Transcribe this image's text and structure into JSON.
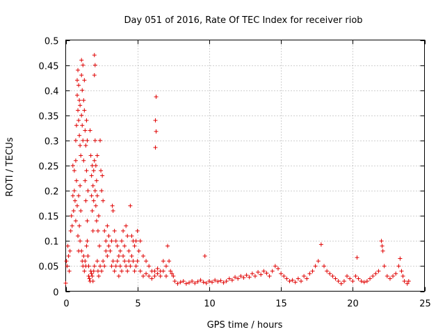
{
  "chart_data": {
    "type": "scatter",
    "title": "Day 051 of 2016, Rate Of TEC Index for receiver riob",
    "xlabel": "GPS time / hours",
    "ylabel": "ROTI / TECUs",
    "xlim": [
      0,
      25
    ],
    "ylim": [
      0,
      0.5
    ],
    "x_ticks": [
      0,
      5,
      10,
      15,
      20,
      25
    ],
    "x_tick_labels": [
      "0",
      "5",
      "10",
      "15",
      "20",
      "25"
    ],
    "y_ticks": [
      0,
      0.05,
      0.1,
      0.15,
      0.2,
      0.25,
      0.3,
      0.35,
      0.4,
      0.45,
      0.5
    ],
    "y_tick_labels": [
      "0",
      "0.05",
      "0.1",
      "0.15",
      "0.2",
      "0.25",
      "0.3",
      "0.35",
      "0.4",
      "0.45",
      "0.5"
    ],
    "grid": true,
    "marker": "+",
    "series_color": "#e00000",
    "series": [
      {
        "name": "ROTI",
        "points": [
          [
            0.0,
            0.016
          ],
          [
            0.05,
            0.06
          ],
          [
            0.1,
            0.05
          ],
          [
            0.15,
            0.09
          ],
          [
            0.2,
            0.07
          ],
          [
            0.25,
            0.04
          ],
          [
            0.3,
            0.08
          ],
          [
            0.35,
            0.12
          ],
          [
            0.4,
            0.15
          ],
          [
            0.45,
            0.13
          ],
          [
            0.5,
            0.19
          ],
          [
            0.5,
            0.25
          ],
          [
            0.55,
            0.16
          ],
          [
            0.6,
            0.2
          ],
          [
            0.6,
            0.24
          ],
          [
            0.65,
            0.18
          ],
          [
            0.7,
            0.26
          ],
          [
            0.7,
            0.14
          ],
          [
            0.75,
            0.22
          ],
          [
            0.8,
            0.17
          ],
          [
            0.85,
            0.11
          ],
          [
            0.9,
            0.08
          ],
          [
            0.9,
            0.19
          ],
          [
            0.95,
            0.13
          ],
          [
            1.0,
            0.1
          ],
          [
            1.0,
            0.21
          ],
          [
            1.05,
            0.16
          ],
          [
            0.7,
            0.3
          ],
          [
            0.75,
            0.33
          ],
          [
            0.8,
            0.39
          ],
          [
            0.8,
            0.42
          ],
          [
            0.85,
            0.44
          ],
          [
            0.85,
            0.36
          ],
          [
            0.9,
            0.34
          ],
          [
            0.9,
            0.41
          ],
          [
            0.95,
            0.38
          ],
          [
            0.95,
            0.31
          ],
          [
            1.0,
            0.37
          ],
          [
            1.0,
            0.29
          ],
          [
            1.05,
            0.27
          ],
          [
            1.1,
            0.43
          ],
          [
            1.1,
            0.46
          ],
          [
            1.1,
            0.35
          ],
          [
            1.15,
            0.4
          ],
          [
            1.15,
            0.33
          ],
          [
            1.2,
            0.45
          ],
          [
            1.2,
            0.3
          ],
          [
            1.25,
            0.38
          ],
          [
            1.25,
            0.26
          ],
          [
            1.3,
            0.36
          ],
          [
            1.3,
            0.42
          ],
          [
            1.35,
            0.32
          ],
          [
            1.35,
            0.22
          ],
          [
            1.4,
            0.29
          ],
          [
            1.4,
            0.18
          ],
          [
            1.45,
            0.34
          ],
          [
            1.45,
            0.24
          ],
          [
            1.5,
            0.3
          ],
          [
            1.5,
            0.14
          ],
          [
            1.55,
            0.2
          ],
          [
            1.1,
            0.08
          ],
          [
            1.15,
            0.06
          ],
          [
            1.2,
            0.05
          ],
          [
            1.25,
            0.07
          ],
          [
            1.3,
            0.04
          ],
          [
            1.35,
            0.06
          ],
          [
            1.4,
            0.05
          ],
          [
            1.45,
            0.09
          ],
          [
            1.5,
            0.1
          ],
          [
            1.55,
            0.07
          ],
          [
            1.6,
            0.05
          ],
          [
            1.6,
            0.03
          ],
          [
            1.65,
            0.025
          ],
          [
            1.7,
            0.02
          ],
          [
            1.75,
            0.04
          ],
          [
            1.8,
            0.035
          ],
          [
            1.85,
            0.03
          ],
          [
            1.9,
            0.02
          ],
          [
            1.95,
            0.04
          ],
          [
            2.0,
            0.05
          ],
          [
            1.7,
            0.32
          ],
          [
            1.75,
            0.27
          ],
          [
            1.8,
            0.23
          ],
          [
            1.8,
            0.19
          ],
          [
            1.85,
            0.25
          ],
          [
            1.85,
            0.16
          ],
          [
            1.9,
            0.21
          ],
          [
            1.9,
            0.12
          ],
          [
            1.95,
            0.18
          ],
          [
            1.95,
            0.24
          ],
          [
            2.0,
            0.43
          ],
          [
            2.0,
            0.47
          ],
          [
            2.0,
            0.26
          ],
          [
            2.05,
            0.45
          ],
          [
            2.05,
            0.3
          ],
          [
            2.05,
            0.2
          ],
          [
            2.1,
            0.25
          ],
          [
            2.1,
            0.17
          ],
          [
            2.15,
            0.22
          ],
          [
            2.15,
            0.14
          ],
          [
            2.2,
            0.19
          ],
          [
            2.2,
            0.27
          ],
          [
            2.25,
            0.12
          ],
          [
            2.3,
            0.15
          ],
          [
            2.35,
            0.09
          ],
          [
            2.4,
            0.3
          ],
          [
            2.45,
            0.24
          ],
          [
            2.5,
            0.2
          ],
          [
            2.55,
            0.23
          ],
          [
            2.6,
            0.18
          ],
          [
            2.2,
            0.06
          ],
          [
            2.25,
            0.04
          ],
          [
            2.3,
            0.03
          ],
          [
            2.4,
            0.05
          ],
          [
            2.5,
            0.04
          ],
          [
            2.6,
            0.06
          ],
          [
            2.7,
            0.05
          ],
          [
            2.8,
            0.08
          ],
          [
            2.9,
            0.07
          ],
          [
            3.0,
            0.09
          ],
          [
            2.7,
            0.12
          ],
          [
            2.8,
            0.1
          ],
          [
            2.9,
            0.13
          ],
          [
            3.0,
            0.11
          ],
          [
            3.1,
            0.08
          ],
          [
            3.2,
            0.1
          ],
          [
            3.25,
            0.17
          ],
          [
            3.3,
            0.16
          ],
          [
            3.4,
            0.12
          ],
          [
            3.5,
            0.1
          ],
          [
            3.2,
            0.05
          ],
          [
            3.3,
            0.06
          ],
          [
            3.4,
            0.04
          ],
          [
            3.5,
            0.05
          ],
          [
            3.6,
            0.06
          ],
          [
            3.7,
            0.03
          ],
          [
            3.8,
            0.05
          ],
          [
            3.9,
            0.04
          ],
          [
            4.0,
            0.07
          ],
          [
            4.1,
            0.06
          ],
          [
            3.6,
            0.09
          ],
          [
            3.7,
            0.07
          ],
          [
            3.8,
            0.08
          ],
          [
            3.9,
            0.1
          ],
          [
            4.0,
            0.12
          ],
          [
            4.1,
            0.09
          ],
          [
            4.2,
            0.13
          ],
          [
            4.3,
            0.11
          ],
          [
            4.4,
            0.08
          ],
          [
            4.5,
            0.17
          ],
          [
            4.2,
            0.05
          ],
          [
            4.3,
            0.04
          ],
          [
            4.4,
            0.06
          ],
          [
            4.5,
            0.05
          ],
          [
            4.6,
            0.07
          ],
          [
            4.7,
            0.06
          ],
          [
            4.8,
            0.04
          ],
          [
            4.9,
            0.05
          ],
          [
            5.0,
            0.06
          ],
          [
            5.1,
            0.08
          ],
          [
            4.6,
            0.11
          ],
          [
            4.7,
            0.1
          ],
          [
            4.8,
            0.09
          ],
          [
            4.9,
            0.1
          ],
          [
            5.0,
            0.12
          ],
          [
            5.2,
            0.1
          ],
          [
            5.4,
            0.07
          ],
          [
            5.6,
            0.06
          ],
          [
            5.8,
            0.05
          ],
          [
            6.0,
            0.04
          ],
          [
            5.2,
            0.04
          ],
          [
            5.4,
            0.03
          ],
          [
            5.6,
            0.035
          ],
          [
            5.8,
            0.03
          ],
          [
            6.0,
            0.025
          ],
          [
            6.2,
            0.03
          ],
          [
            6.4,
            0.035
          ],
          [
            6.6,
            0.04
          ],
          [
            6.8,
            0.06
          ],
          [
            7.0,
            0.05
          ],
          [
            6.2,
            0.04
          ],
          [
            6.4,
            0.045
          ],
          [
            6.6,
            0.03
          ],
          [
            6.8,
            0.04
          ],
          [
            7.0,
            0.03
          ],
          [
            7.1,
            0.09
          ],
          [
            7.2,
            0.06
          ],
          [
            7.3,
            0.04
          ],
          [
            7.4,
            0.035
          ],
          [
            7.5,
            0.03
          ],
          [
            6.3,
            0.387
          ],
          [
            6.25,
            0.34
          ],
          [
            6.3,
            0.318
          ],
          [
            6.25,
            0.286
          ],
          [
            7.6,
            0.02
          ],
          [
            7.8,
            0.015
          ],
          [
            8.0,
            0.018
          ],
          [
            8.2,
            0.02
          ],
          [
            8.4,
            0.015
          ],
          [
            8.6,
            0.017
          ],
          [
            8.8,
            0.02
          ],
          [
            9.0,
            0.016
          ],
          [
            9.2,
            0.019
          ],
          [
            9.4,
            0.022
          ],
          [
            9.6,
            0.018
          ],
          [
            9.7,
            0.07
          ],
          [
            9.8,
            0.016
          ],
          [
            10.0,
            0.02
          ],
          [
            10.2,
            0.018
          ],
          [
            10.4,
            0.022
          ],
          [
            10.6,
            0.019
          ],
          [
            10.8,
            0.021
          ],
          [
            11.0,
            0.017
          ],
          [
            11.2,
            0.02
          ],
          [
            11.4,
            0.025
          ],
          [
            11.6,
            0.022
          ],
          [
            11.8,
            0.028
          ],
          [
            12.0,
            0.025
          ],
          [
            12.2,
            0.03
          ],
          [
            12.4,
            0.027
          ],
          [
            12.6,
            0.032
          ],
          [
            12.8,
            0.028
          ],
          [
            13.0,
            0.035
          ],
          [
            13.2,
            0.03
          ],
          [
            13.4,
            0.038
          ],
          [
            13.6,
            0.033
          ],
          [
            13.8,
            0.04
          ],
          [
            14.0,
            0.036
          ],
          [
            14.2,
            0.03
          ],
          [
            14.4,
            0.04
          ],
          [
            14.6,
            0.05
          ],
          [
            14.8,
            0.045
          ],
          [
            15.0,
            0.035
          ],
          [
            15.2,
            0.03
          ],
          [
            15.4,
            0.025
          ],
          [
            15.6,
            0.02
          ],
          [
            15.8,
            0.022
          ],
          [
            16.0,
            0.018
          ],
          [
            16.2,
            0.025
          ],
          [
            16.4,
            0.02
          ],
          [
            16.6,
            0.03
          ],
          [
            16.8,
            0.025
          ],
          [
            17.0,
            0.035
          ],
          [
            17.2,
            0.04
          ],
          [
            17.4,
            0.05
          ],
          [
            17.6,
            0.06
          ],
          [
            17.8,
            0.093
          ],
          [
            18.0,
            0.05
          ],
          [
            18.2,
            0.04
          ],
          [
            18.4,
            0.035
          ],
          [
            18.6,
            0.03
          ],
          [
            18.8,
            0.025
          ],
          [
            19.0,
            0.02
          ],
          [
            19.2,
            0.015
          ],
          [
            19.4,
            0.02
          ],
          [
            19.6,
            0.03
          ],
          [
            19.8,
            0.025
          ],
          [
            20.0,
            0.02
          ],
          [
            20.2,
            0.03
          ],
          [
            20.3,
            0.067
          ],
          [
            20.4,
            0.025
          ],
          [
            20.6,
            0.02
          ],
          [
            20.8,
            0.018
          ],
          [
            21.0,
            0.02
          ],
          [
            21.2,
            0.025
          ],
          [
            21.4,
            0.03
          ],
          [
            21.6,
            0.035
          ],
          [
            21.8,
            0.04
          ],
          [
            22.0,
            0.1
          ],
          [
            22.05,
            0.09
          ],
          [
            22.1,
            0.08
          ],
          [
            22.2,
            0.05
          ],
          [
            22.4,
            0.03
          ],
          [
            22.6,
            0.025
          ],
          [
            22.8,
            0.03
          ],
          [
            23.0,
            0.035
          ],
          [
            23.2,
            0.05
          ],
          [
            23.3,
            0.065
          ],
          [
            23.4,
            0.04
          ],
          [
            23.5,
            0.03
          ],
          [
            23.6,
            0.02
          ],
          [
            23.8,
            0.015
          ],
          [
            23.9,
            0.02
          ]
        ]
      }
    ]
  }
}
